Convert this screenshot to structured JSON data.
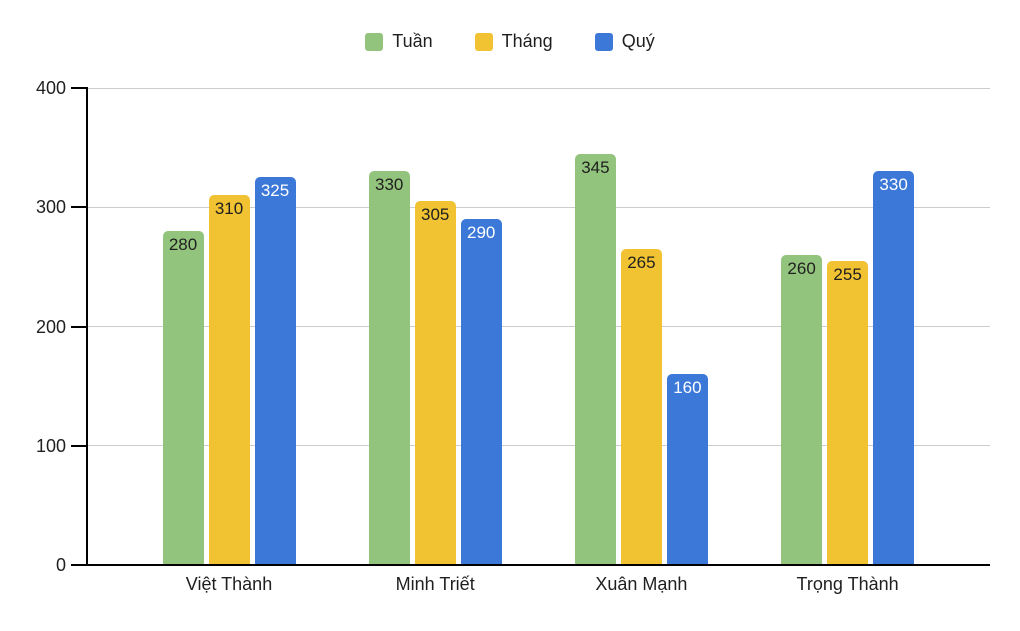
{
  "chart_data": {
    "type": "bar",
    "title": "",
    "categories": [
      "Việt Thành",
      "Minh Triết",
      "Xuân Mạnh",
      "Trọng Thành"
    ],
    "series": [
      {
        "name": "Tuần",
        "color": "#93C47D",
        "label_color": "#1f1f1f",
        "values": [
          280,
          330,
          345,
          260
        ]
      },
      {
        "name": "Tháng",
        "color": "#F1C232",
        "label_color": "#1f1f1f",
        "values": [
          310,
          305,
          265,
          255
        ]
      },
      {
        "name": "Quý",
        "color": "#3C78D8",
        "label_color": "#ffffff",
        "values": [
          325,
          290,
          160,
          330
        ]
      }
    ],
    "y_axis": {
      "min": 0,
      "max": 400,
      "ticks": [
        0,
        100,
        200,
        300,
        400
      ]
    },
    "grid": true,
    "legend_position": "top",
    "colors": {
      "grid": "#cccccc",
      "axis": "#000000",
      "text": "#1f1f1f",
      "background": "#ffffff"
    }
  }
}
